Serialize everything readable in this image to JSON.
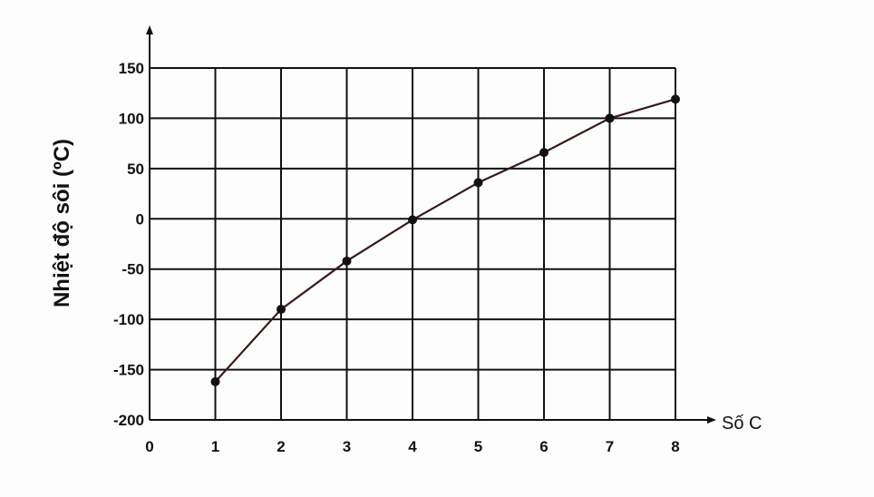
{
  "chart_data": {
    "type": "line",
    "title": "",
    "xlabel": "Số C",
    "ylabel": "Nhiệt độ sôi (ºC)",
    "x": [
      1,
      2,
      3,
      4,
      5,
      6,
      7,
      8
    ],
    "values": [
      -162,
      -90,
      -42,
      -1,
      36,
      66,
      100,
      119
    ],
    "xlim": [
      0,
      8
    ],
    "ylim": [
      -200,
      150
    ],
    "xticks": [
      "0",
      "1",
      "2",
      "3",
      "4",
      "5",
      "6",
      "7",
      "8"
    ],
    "yticks": [
      "150",
      "100",
      "50",
      "0",
      "-50",
      "-100",
      "-150",
      "-200"
    ],
    "grid": true,
    "line_color": "#3a1a1a",
    "marker_color": "#111111"
  }
}
